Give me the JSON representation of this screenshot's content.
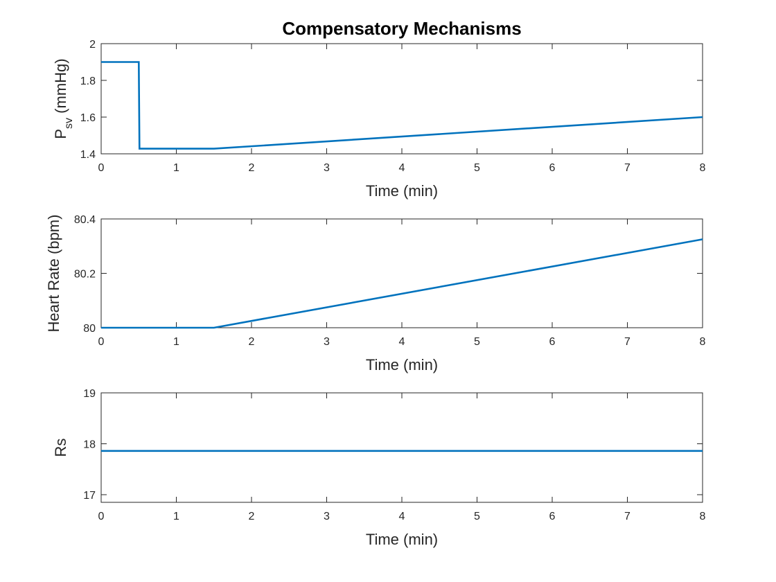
{
  "chart_data": {
    "title": "Compensatory Mechanisms",
    "line_color": "#0072BD",
    "charts": [
      {
        "type": "line",
        "xlabel": "Time (min)",
        "ylabel": "P",
        "ylabel_sub": "sv",
        "ylabel_suffix": " (mmHg)",
        "xlim": [
          0,
          8
        ],
        "ylim": [
          1.4,
          2
        ],
        "xticks": [
          0,
          1,
          2,
          3,
          4,
          5,
          6,
          7,
          8
        ],
        "yticks": [
          1.4,
          1.6,
          1.8,
          2
        ],
        "ytick_labels": [
          "1.4",
          "1.6",
          "1.8",
          "2"
        ],
        "grid": false,
        "series": [
          {
            "x": [
              0,
              0.5,
              0.51,
              1.5,
              8
            ],
            "y": [
              1.9,
              1.9,
              1.428,
              1.428,
              1.6
            ]
          }
        ]
      },
      {
        "type": "line",
        "xlabel": "Time (min)",
        "ylabel": "Heart Rate (bpm)",
        "xlim": [
          0,
          8
        ],
        "ylim": [
          80,
          80.4
        ],
        "xticks": [
          0,
          1,
          2,
          3,
          4,
          5,
          6,
          7,
          8
        ],
        "yticks": [
          80,
          80.2,
          80.4
        ],
        "ytick_labels": [
          "80",
          "80.2",
          "80.4"
        ],
        "grid": false,
        "series": [
          {
            "x": [
              0,
              1.5,
              8
            ],
            "y": [
              80,
              80,
              80.325
            ]
          }
        ]
      },
      {
        "type": "line",
        "xlabel": "Time (min)",
        "ylabel": "Rs",
        "xlim": [
          0,
          8
        ],
        "ylim": [
          16.85,
          19
        ],
        "xticks": [
          0,
          1,
          2,
          3,
          4,
          5,
          6,
          7,
          8
        ],
        "yticks": [
          17,
          18,
          19
        ],
        "ytick_labels": [
          "17",
          "18",
          "19"
        ],
        "grid": false,
        "series": [
          {
            "x": [
              0,
              8
            ],
            "y": [
              17.86,
              17.86
            ]
          }
        ]
      }
    ]
  }
}
